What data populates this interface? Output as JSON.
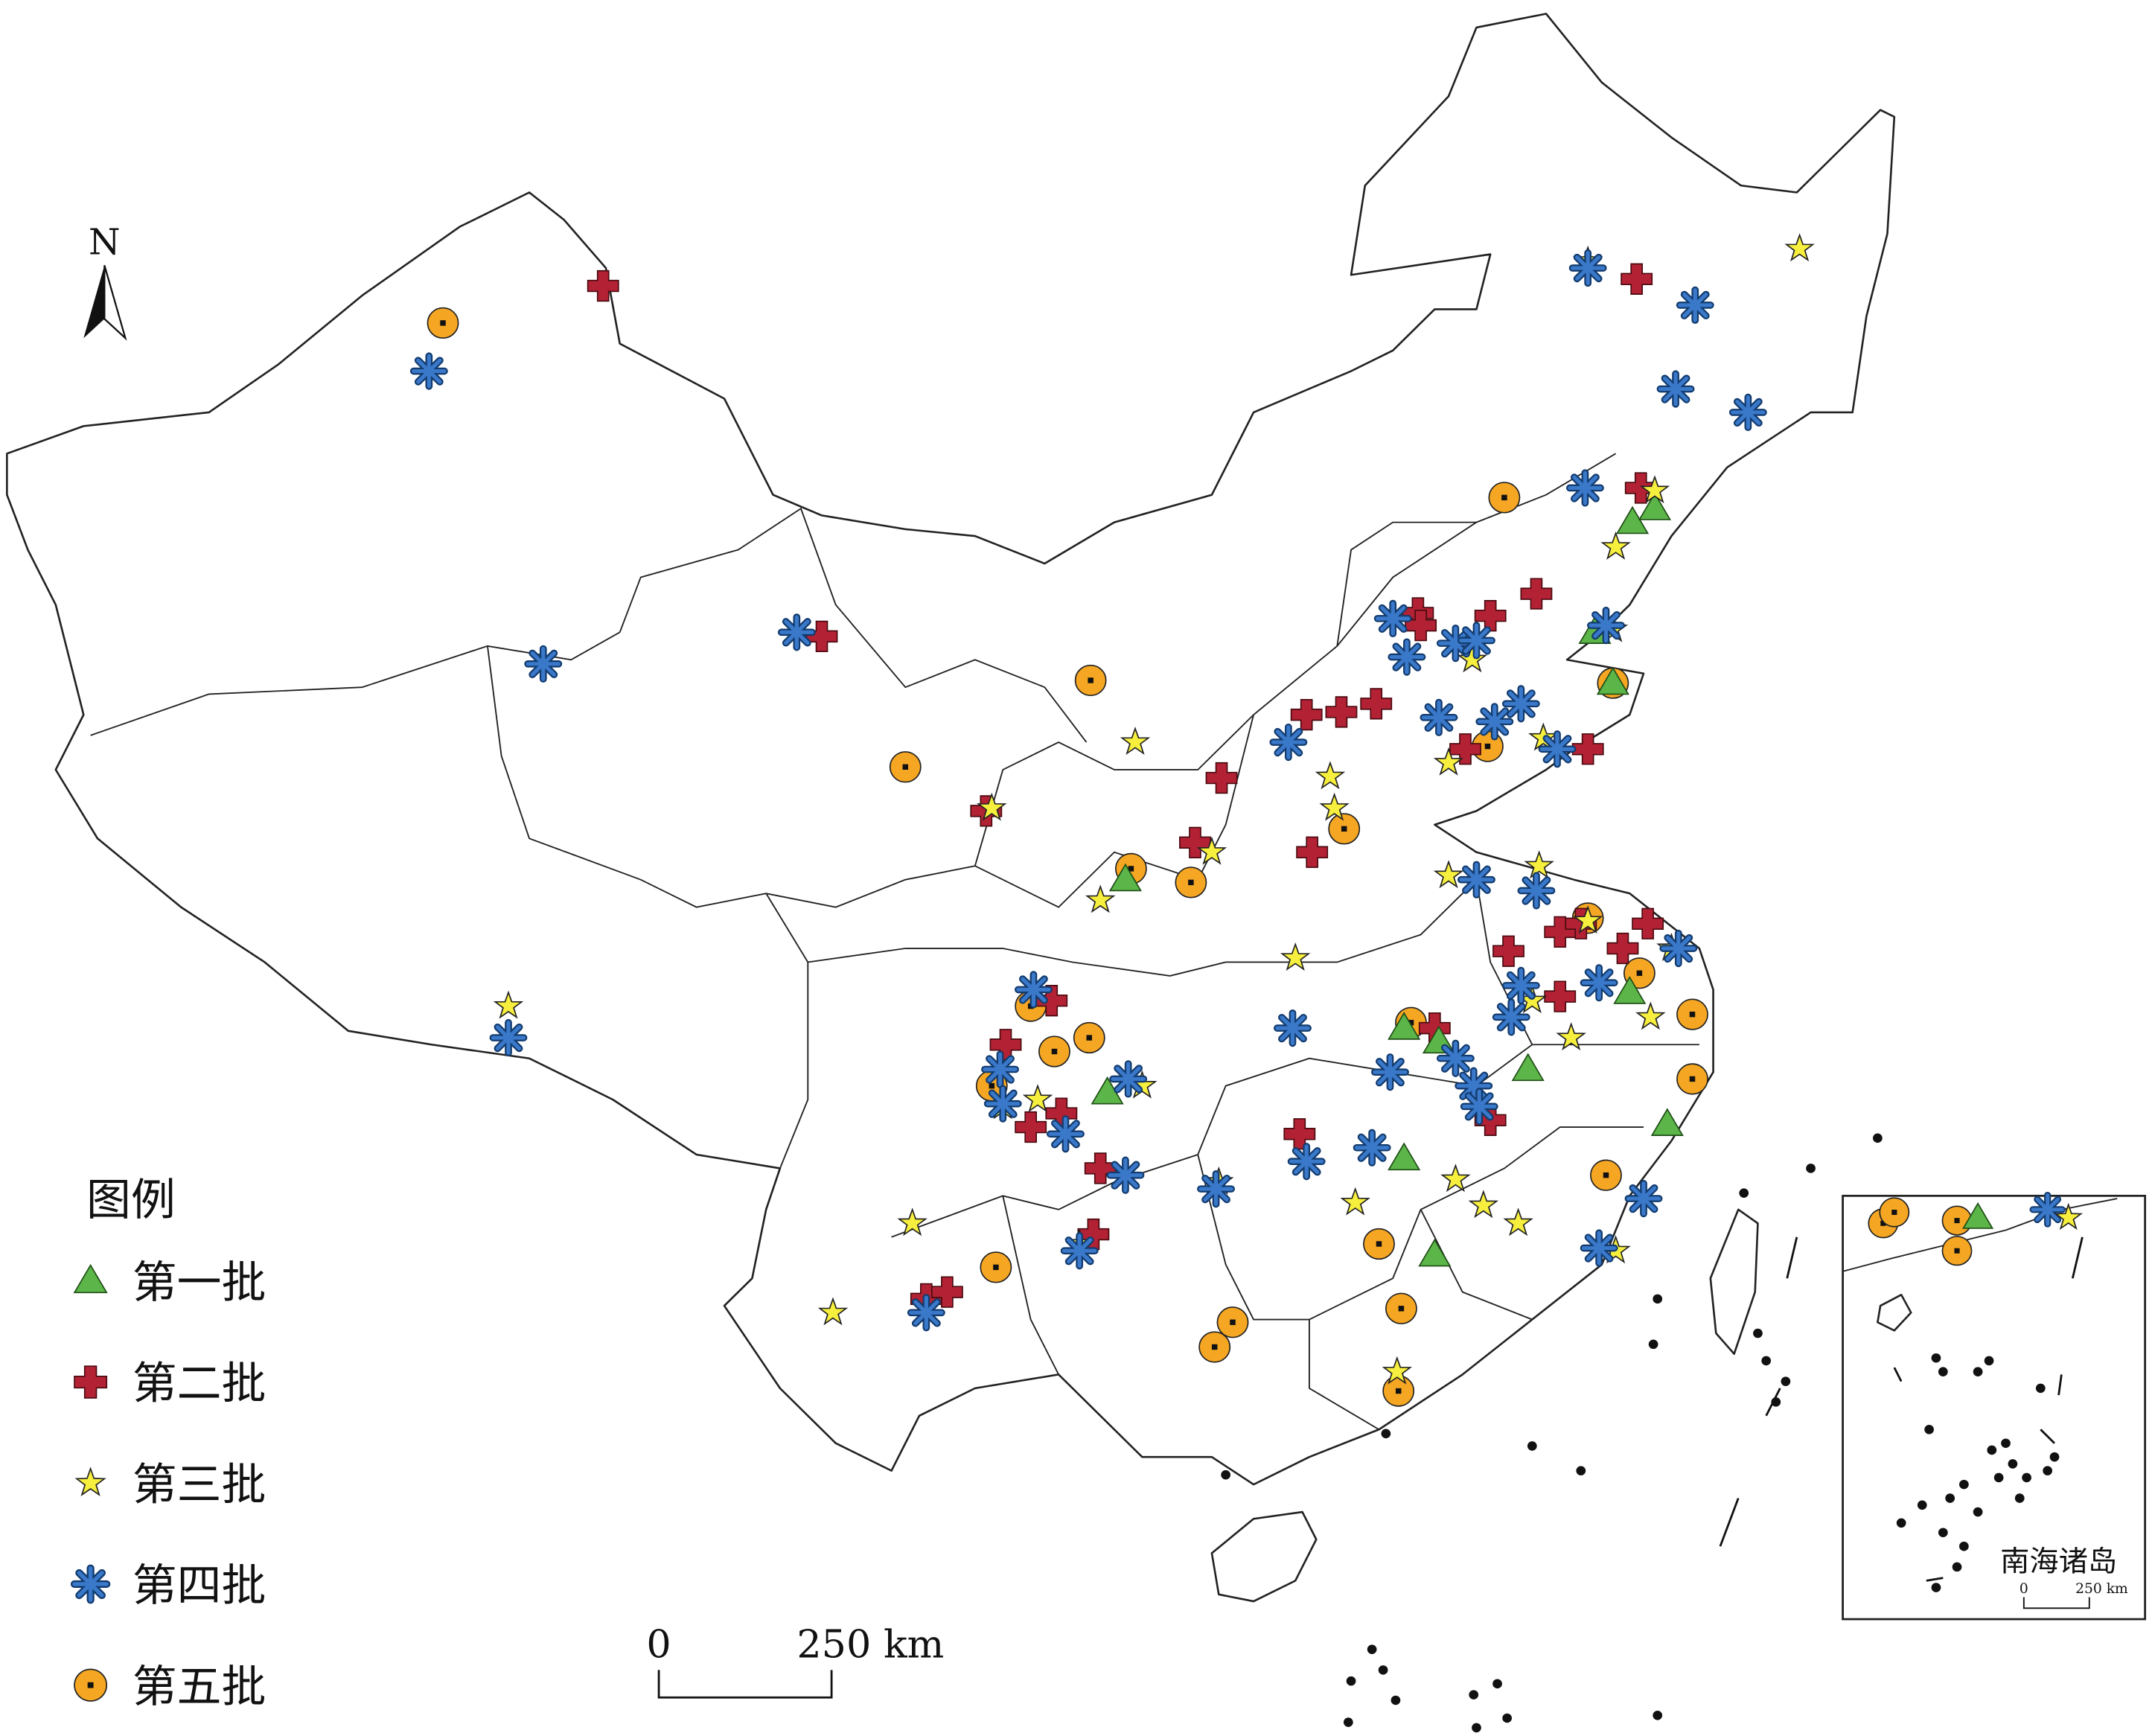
{
  "north": "N",
  "legend": {
    "title": "图例",
    "items": [
      "第一批",
      "第二批",
      "第三批",
      "第四批",
      "第五批"
    ]
  },
  "scale_bar": {
    "zero": "0",
    "label": "250 km"
  },
  "inset": {
    "title": "南海诸岛",
    "scale_zero": "0",
    "scale_label": "250 km"
  }
}
